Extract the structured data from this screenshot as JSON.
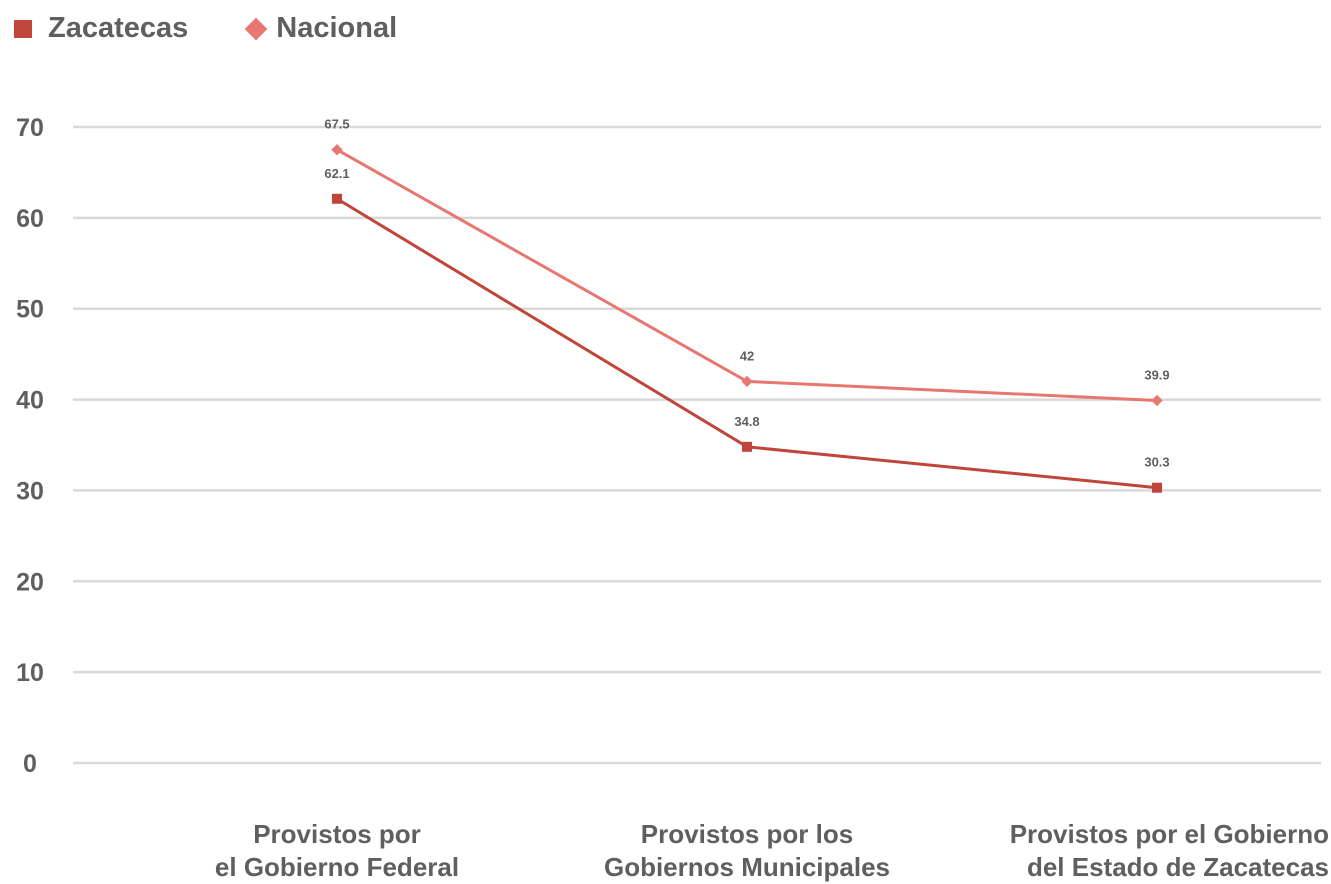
{
  "chart_data": {
    "type": "line",
    "categories": [
      [
        "Provistos por",
        "el Gobierno Federal"
      ],
      [
        "Provistos por los",
        "Gobiernos Municipales"
      ],
      [
        "Provistos por el Gobierno",
        "del Estado de Zacatecas"
      ]
    ],
    "series": [
      {
        "name": "Zacatecas",
        "values": [
          62.1,
          34.8,
          30.3
        ],
        "color": "#c0453a",
        "marker": "square"
      },
      {
        "name": "Nacional",
        "values": [
          67.5,
          42,
          39.9
        ],
        "color": "#e87671",
        "marker": "diamond"
      }
    ],
    "y_ticks": [
      0,
      10,
      20,
      30,
      40,
      50,
      60,
      70
    ],
    "ylim": [
      0,
      70
    ],
    "grid": true,
    "legend": "top-left"
  }
}
